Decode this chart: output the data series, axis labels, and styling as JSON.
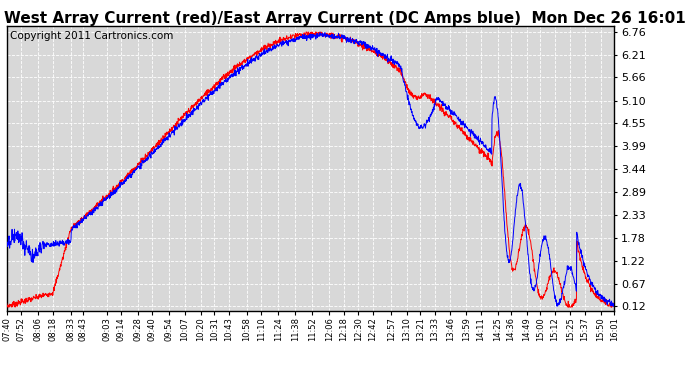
{
  "title": "West Array Current (red)/East Array Current (DC Amps blue)  Mon Dec 26 16:01",
  "copyright": "Copyright 2011 Cartronics.com",
  "yticks": [
    0.12,
    0.67,
    1.22,
    1.78,
    2.33,
    2.89,
    3.44,
    3.99,
    4.55,
    5.1,
    5.66,
    6.21,
    6.76
  ],
  "ymin": 0.0,
  "ymax": 6.9,
  "xtick_labels": [
    "07:40",
    "07:52",
    "08:06",
    "08:18",
    "08:33",
    "08:43",
    "09:03",
    "09:14",
    "09:28",
    "09:40",
    "09:54",
    "10:07",
    "10:20",
    "10:31",
    "10:43",
    "10:58",
    "11:10",
    "11:24",
    "11:38",
    "11:52",
    "12:06",
    "12:18",
    "12:30",
    "12:42",
    "12:57",
    "13:10",
    "13:21",
    "13:33",
    "13:46",
    "13:59",
    "14:11",
    "14:25",
    "14:36",
    "14:49",
    "15:00",
    "15:12",
    "15:25",
    "15:37",
    "15:50",
    "16:01"
  ],
  "background_color": "#ffffff",
  "plot_bg_color": "#d8d8d8",
  "grid_color": "#ffffff",
  "line_color_red": "#ff0000",
  "line_color_blue": "#0000ff",
  "title_fontsize": 11,
  "copyright_fontsize": 7.5
}
